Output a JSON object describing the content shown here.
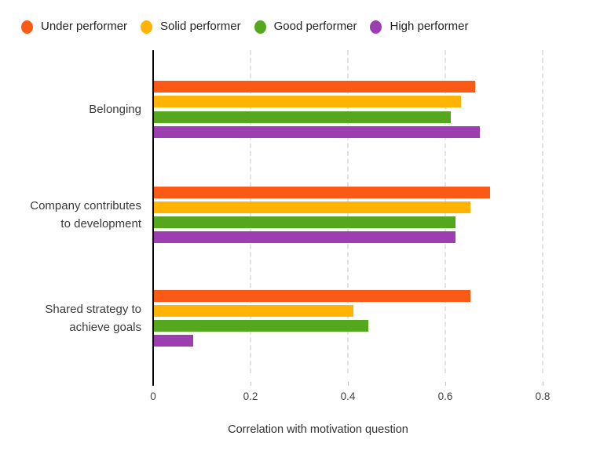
{
  "chart_data": {
    "type": "bar",
    "orientation": "horizontal",
    "title": "",
    "categories": [
      "Belonging",
      "Company contributes\nto development",
      "Shared strategy to\nachieve goals"
    ],
    "series": [
      {
        "name": "Under performer",
        "color": "#FA5A15",
        "values": [
          0.66,
          0.69,
          0.65
        ]
      },
      {
        "name": "Solid performer",
        "color": "#FFB404",
        "values": [
          0.63,
          0.65,
          0.41
        ]
      },
      {
        "name": "Good performer",
        "color": "#55A71E",
        "values": [
          0.61,
          0.62,
          0.44
        ]
      },
      {
        "name": "High performer",
        "color": "#9C3EB0",
        "values": [
          0.67,
          0.62,
          0.08
        ]
      }
    ],
    "xlabel": "Correlation with motivation question",
    "xticks": [
      "0",
      "0.2",
      "0.4",
      "0.6",
      "0.8"
    ],
    "xtick_values": [
      0,
      0.2,
      0.4,
      0.6,
      0.8
    ],
    "xlim": [
      0,
      0.8
    ],
    "grid": "vertical-dashed",
    "legend_position": "top"
  },
  "colors": {
    "axis": "#000000",
    "gridline": "#E2E2E2",
    "tick_text": "#424242",
    "category_text": "#3A3A3A",
    "legend_text": "#212121",
    "background": "#FFFFFF"
  }
}
